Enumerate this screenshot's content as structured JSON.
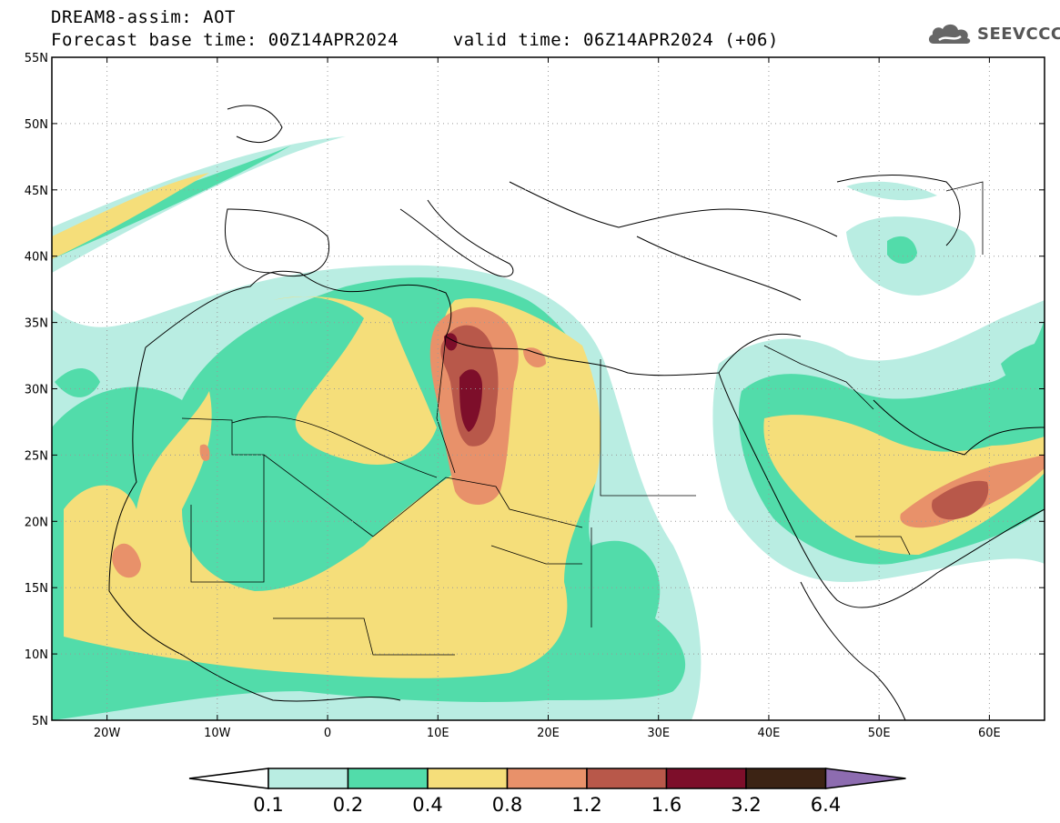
{
  "header": {
    "title": "DREAM8-assim: AOT",
    "base_time": "Forecast base time: 00Z14APR2024",
    "valid_time": "valid time: 06Z14APR2024 (+06)"
  },
  "logo": {
    "text": "SEEVCCC",
    "icon": "cloud-icon"
  },
  "map": {
    "lon_range": [
      -25,
      65
    ],
    "lat_range": [
      5,
      55
    ],
    "lat_ticks": [
      {
        "value": 55,
        "label": "55N"
      },
      {
        "value": 50,
        "label": "50N"
      },
      {
        "value": 45,
        "label": "45N"
      },
      {
        "value": 40,
        "label": "40N"
      },
      {
        "value": 35,
        "label": "35N"
      },
      {
        "value": 30,
        "label": "30N"
      },
      {
        "value": 25,
        "label": "25N"
      },
      {
        "value": 20,
        "label": "20N"
      },
      {
        "value": 15,
        "label": "15N"
      },
      {
        "value": 10,
        "label": "10N"
      },
      {
        "value": 5,
        "label": "5N"
      }
    ],
    "lon_ticks": [
      {
        "value": -20,
        "label": "20W"
      },
      {
        "value": -10,
        "label": "10W"
      },
      {
        "value": 0,
        "label": "0"
      },
      {
        "value": 10,
        "label": "10E"
      },
      {
        "value": 20,
        "label": "20E"
      },
      {
        "value": 30,
        "label": "30E"
      },
      {
        "value": 40,
        "label": "40E"
      },
      {
        "value": 50,
        "label": "50E"
      },
      {
        "value": 60,
        "label": "60E"
      }
    ],
    "grid": "dotted"
  },
  "colorbar": {
    "labels": [
      "0.1",
      "0.2",
      "0.4",
      "0.8",
      "1.2",
      "1.6",
      "3.2",
      "6.4"
    ],
    "colors": [
      "#ffffff",
      "#b9ede2",
      "#52dcaa",
      "#f5de7a",
      "#e8916a",
      "#b8584a",
      "#7d0e2a",
      "#3c2314",
      "#8d6cb0"
    ]
  }
}
